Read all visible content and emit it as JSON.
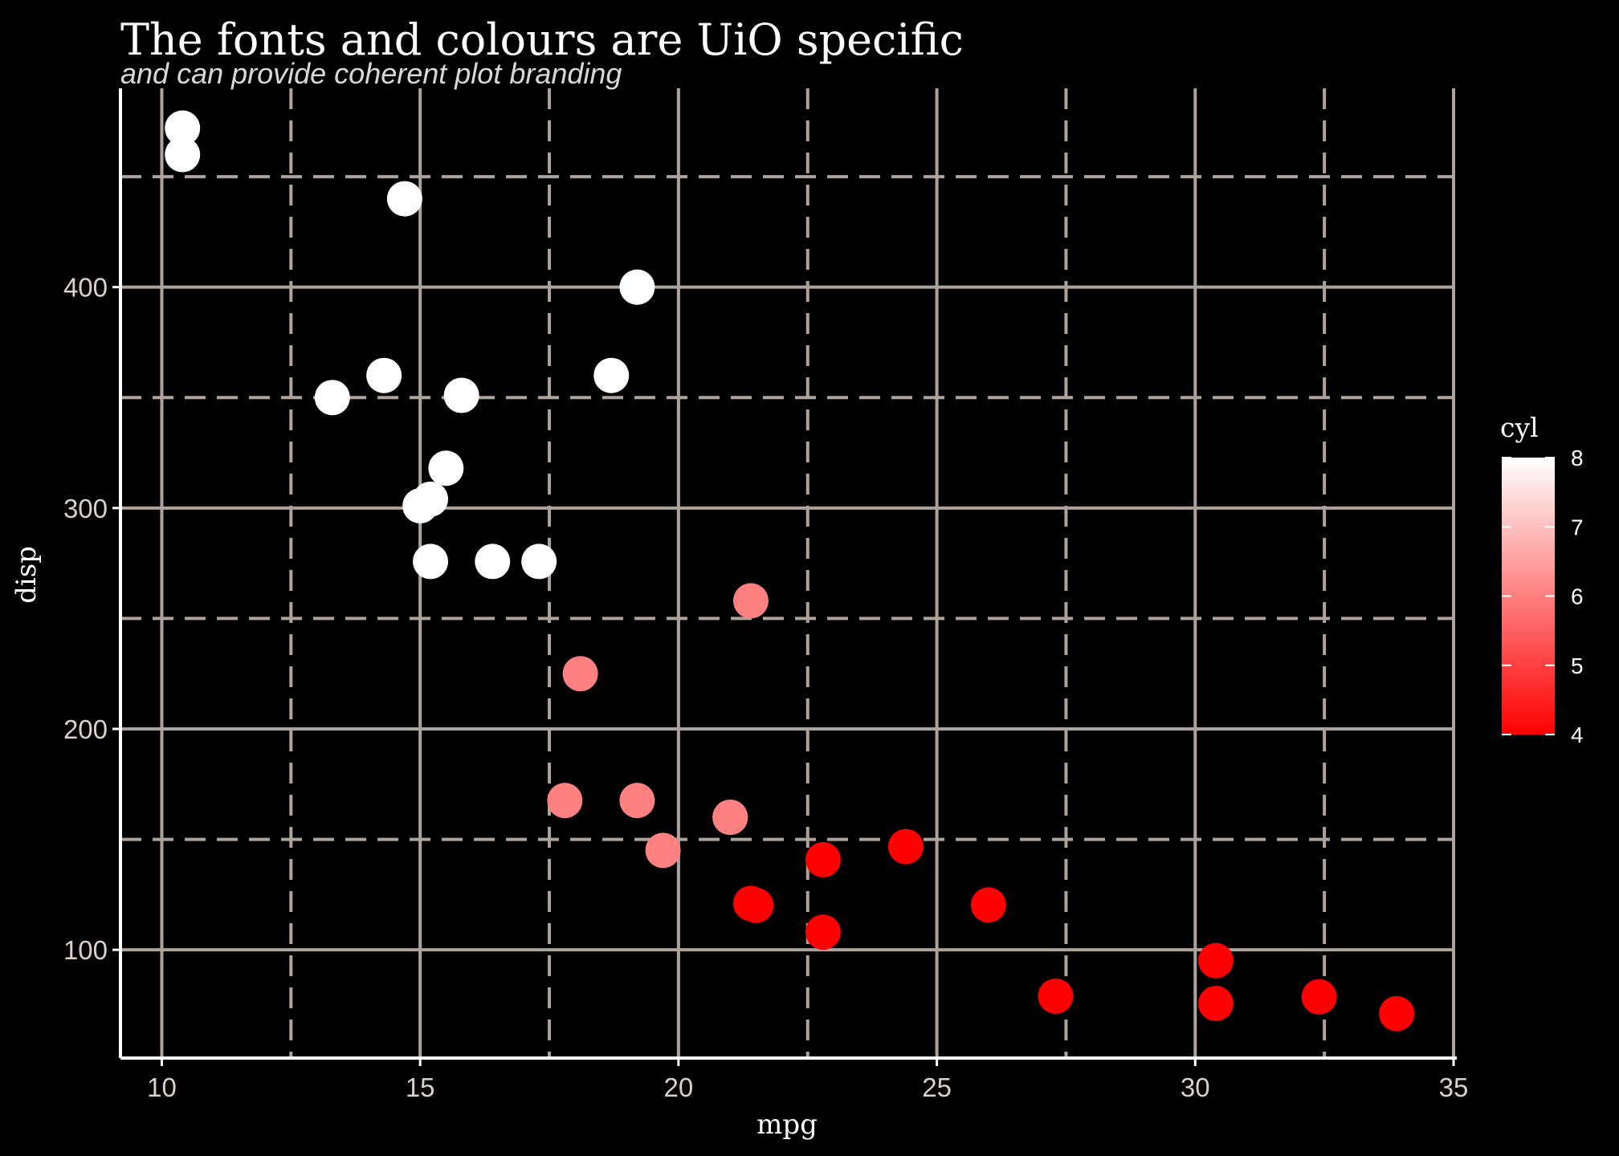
{
  "chart_data": {
    "type": "scatter",
    "title": "The fonts and colours are UiO specific",
    "subtitle": "and can provide coherent plot branding",
    "xlabel": "mpg",
    "ylabel": "disp",
    "xlim": [
      9.2,
      35.0
    ],
    "ylim": [
      51,
      490
    ],
    "x_ticks": [
      10,
      15,
      20,
      25,
      30,
      35
    ],
    "x_tick_labels": [
      "10",
      "15",
      "20",
      "25",
      "30",
      "35"
    ],
    "x_minor_gridlines": [
      12.5,
      17.5,
      22.5,
      27.5,
      32.5
    ],
    "y_ticks": [
      100,
      200,
      300,
      400
    ],
    "y_tick_labels": [
      "100",
      "200",
      "300",
      "400"
    ],
    "y_minor_gridlines": [
      150,
      250,
      350,
      450
    ],
    "grid": true,
    "major_grid_style": "solid",
    "minor_grid_style": "dashed",
    "grid_color": "#ada39a",
    "background_color": "#000000",
    "axis_line_color": "#ffffff",
    "legend": {
      "title": "cyl",
      "type": "colorbar",
      "position": "right",
      "min": 4,
      "max": 8,
      "ticks": [
        4,
        5,
        6,
        7,
        8
      ],
      "tick_labels": [
        "4",
        "5",
        "6",
        "7",
        "8"
      ],
      "low_color": "#ff0000",
      "high_color": "#ffffff"
    },
    "color_variable": "cyl",
    "points": [
      {
        "x": 21.0,
        "y": 160,
        "cyl": 6
      },
      {
        "x": 21.0,
        "y": 160,
        "cyl": 6
      },
      {
        "x": 22.8,
        "y": 108,
        "cyl": 4
      },
      {
        "x": 21.4,
        "y": 258,
        "cyl": 6
      },
      {
        "x": 18.7,
        "y": 360,
        "cyl": 8
      },
      {
        "x": 18.1,
        "y": 225,
        "cyl": 6
      },
      {
        "x": 14.3,
        "y": 360,
        "cyl": 8
      },
      {
        "x": 24.4,
        "y": 146.7,
        "cyl": 4
      },
      {
        "x": 22.8,
        "y": 140.8,
        "cyl": 4
      },
      {
        "x": 19.2,
        "y": 167.6,
        "cyl": 6
      },
      {
        "x": 17.8,
        "y": 167.6,
        "cyl": 6
      },
      {
        "x": 16.4,
        "y": 275.8,
        "cyl": 8
      },
      {
        "x": 17.3,
        "y": 275.8,
        "cyl": 8
      },
      {
        "x": 15.2,
        "y": 275.8,
        "cyl": 8
      },
      {
        "x": 10.4,
        "y": 472,
        "cyl": 8
      },
      {
        "x": 10.4,
        "y": 460,
        "cyl": 8
      },
      {
        "x": 14.7,
        "y": 440,
        "cyl": 8
      },
      {
        "x": 32.4,
        "y": 78.7,
        "cyl": 4
      },
      {
        "x": 30.4,
        "y": 75.7,
        "cyl": 4
      },
      {
        "x": 33.9,
        "y": 71.1,
        "cyl": 4
      },
      {
        "x": 21.5,
        "y": 120.1,
        "cyl": 4
      },
      {
        "x": 15.5,
        "y": 318,
        "cyl": 8
      },
      {
        "x": 15.2,
        "y": 304,
        "cyl": 8
      },
      {
        "x": 13.3,
        "y": 350,
        "cyl": 8
      },
      {
        "x": 19.2,
        "y": 400,
        "cyl": 8
      },
      {
        "x": 27.3,
        "y": 79,
        "cyl": 4
      },
      {
        "x": 26.0,
        "y": 120.3,
        "cyl": 4
      },
      {
        "x": 30.4,
        "y": 95.1,
        "cyl": 4
      },
      {
        "x": 15.8,
        "y": 351,
        "cyl": 8
      },
      {
        "x": 19.7,
        "y": 145,
        "cyl": 6
      },
      {
        "x": 15.0,
        "y": 301,
        "cyl": 8
      },
      {
        "x": 21.4,
        "y": 121,
        "cyl": 4
      }
    ]
  }
}
